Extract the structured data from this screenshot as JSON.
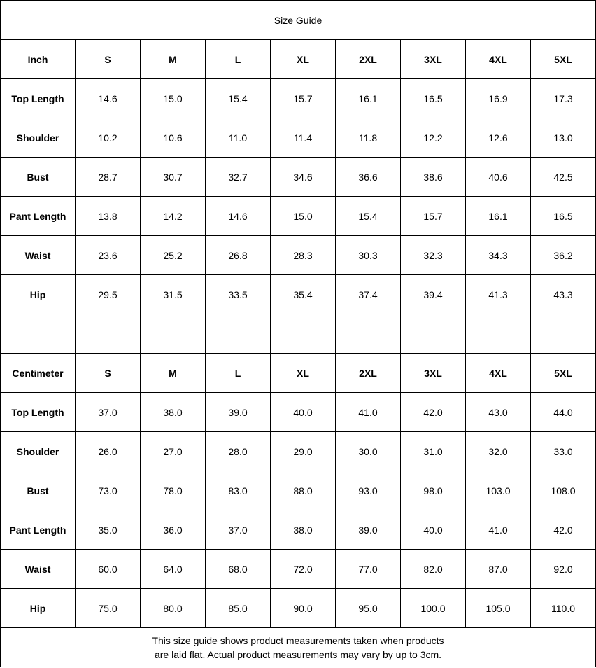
{
  "title": "Size Guide",
  "sizes": [
    "S",
    "M",
    "L",
    "XL",
    "2XL",
    "3XL",
    "4XL",
    "5XL"
  ],
  "tables": [
    {
      "unit": "Inch",
      "rows": [
        {
          "label": "Top Length",
          "values": [
            "14.6",
            "15.0",
            "15.4",
            "15.7",
            "16.1",
            "16.5",
            "16.9",
            "17.3"
          ]
        },
        {
          "label": "Shoulder",
          "values": [
            "10.2",
            "10.6",
            "11.0",
            "11.4",
            "11.8",
            "12.2",
            "12.6",
            "13.0"
          ]
        },
        {
          "label": "Bust",
          "values": [
            "28.7",
            "30.7",
            "32.7",
            "34.6",
            "36.6",
            "38.6",
            "40.6",
            "42.5"
          ]
        },
        {
          "label": "Pant Length",
          "values": [
            "13.8",
            "14.2",
            "14.6",
            "15.0",
            "15.4",
            "15.7",
            "16.1",
            "16.5"
          ]
        },
        {
          "label": "Waist",
          "values": [
            "23.6",
            "25.2",
            "26.8",
            "28.3",
            "30.3",
            "32.3",
            "34.3",
            "36.2"
          ]
        },
        {
          "label": "Hip",
          "values": [
            "29.5",
            "31.5",
            "33.5",
            "35.4",
            "37.4",
            "39.4",
            "41.3",
            "43.3"
          ]
        }
      ]
    },
    {
      "unit": "Centimeter",
      "rows": [
        {
          "label": "Top Length",
          "values": [
            "37.0",
            "38.0",
            "39.0",
            "40.0",
            "41.0",
            "42.0",
            "43.0",
            "44.0"
          ]
        },
        {
          "label": "Shoulder",
          "values": [
            "26.0",
            "27.0",
            "28.0",
            "29.0",
            "30.0",
            "31.0",
            "32.0",
            "33.0"
          ]
        },
        {
          "label": "Bust",
          "values": [
            "73.0",
            "78.0",
            "83.0",
            "88.0",
            "93.0",
            "98.0",
            "103.0",
            "108.0"
          ]
        },
        {
          "label": "Pant Length",
          "values": [
            "35.0",
            "36.0",
            "37.0",
            "38.0",
            "39.0",
            "40.0",
            "41.0",
            "42.0"
          ]
        },
        {
          "label": "Waist",
          "values": [
            "60.0",
            "64.0",
            "68.0",
            "72.0",
            "77.0",
            "82.0",
            "87.0",
            "92.0"
          ]
        },
        {
          "label": "Hip",
          "values": [
            "75.0",
            "80.0",
            "85.0",
            "90.0",
            "95.0",
            "100.0",
            "105.0",
            "110.0"
          ]
        }
      ]
    }
  ],
  "note": {
    "line1": "This size guide shows product measurements taken when products",
    "line2": "are laid flat. Actual product measurements may vary by up to 3cm."
  }
}
